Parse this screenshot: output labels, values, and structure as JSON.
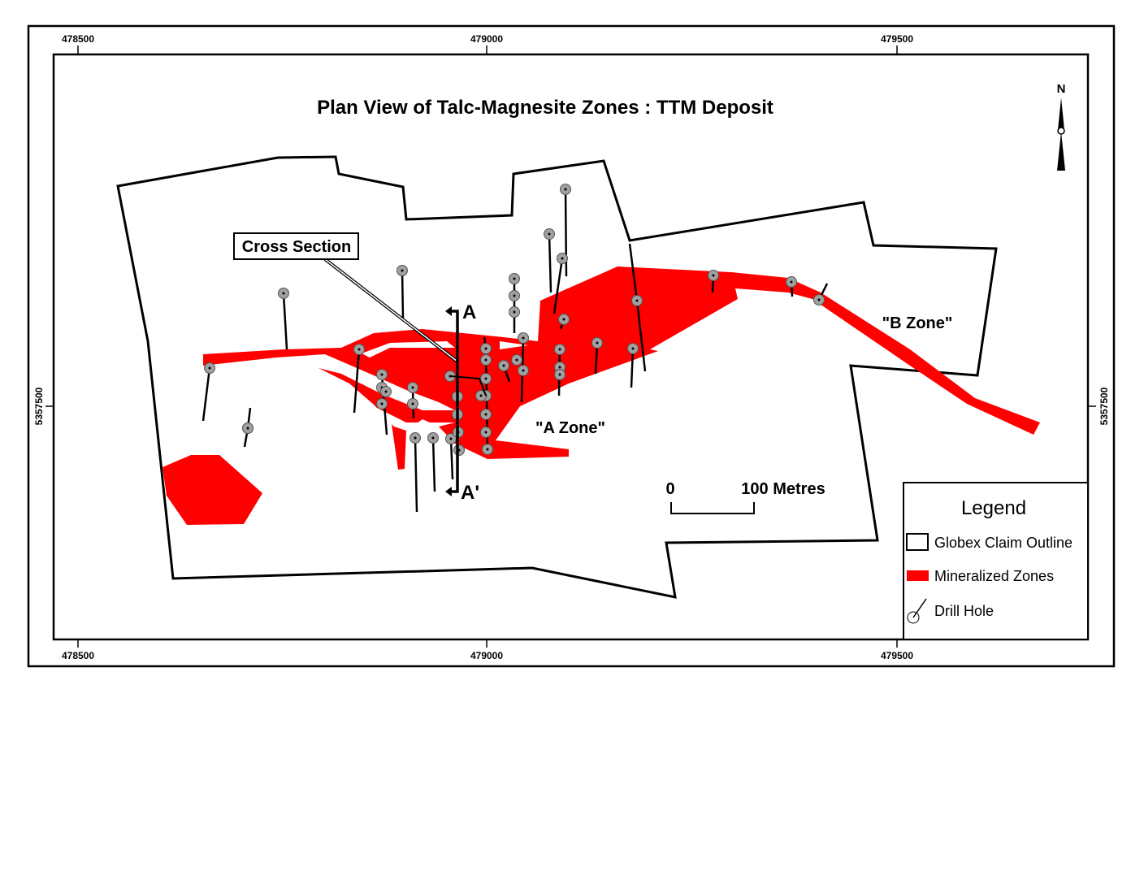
{
  "map": {
    "title": "Plan View of Talc-Magnesite Zones : TTM Deposit",
    "north_label": "N",
    "grid_labels": {
      "top": [
        "478500",
        "479000",
        "479500"
      ],
      "bottom": [
        "478500",
        "479000",
        "479500"
      ],
      "left": "5357500",
      "right": "5357500"
    },
    "labels": {
      "cross_section": "Cross Section",
      "section_start": "A",
      "section_end": "A'",
      "a_zone": "\"A Zone\"",
      "b_zone": "\"B Zone\""
    },
    "scale_bar": {
      "start": "0",
      "end": "100 Metres"
    },
    "legend": {
      "title": "Legend",
      "items": [
        {
          "label": "Globex Claim Outline",
          "symbol": "outline"
        },
        {
          "label": "Mineralized Zones",
          "symbol": "fill"
        },
        {
          "label": "Drill Hole",
          "symbol": "drill-hole"
        }
      ]
    },
    "colors": {
      "mineralized": "#ff0000",
      "drill_hole": "#a0a0a0",
      "outline": "#000000"
    }
  }
}
